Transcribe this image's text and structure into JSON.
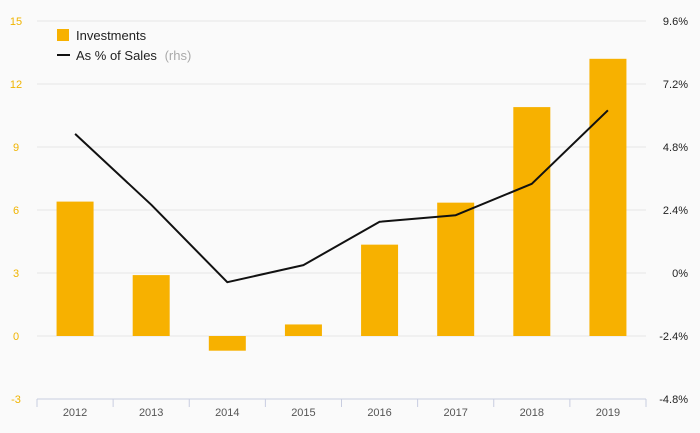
{
  "chart_data": {
    "type": "bar+line",
    "categories": [
      "2012",
      "2013",
      "2014",
      "2015",
      "2016",
      "2017",
      "2018",
      "2019"
    ],
    "series": [
      {
        "name": "Investments",
        "type": "bar",
        "axis": "left",
        "values": [
          6.4,
          2.9,
          -0.7,
          0.55,
          4.35,
          6.35,
          10.9,
          13.2
        ]
      },
      {
        "name": "As % of Sales",
        "type": "line",
        "axis": "right",
        "values": [
          5.3,
          2.6,
          -0.35,
          0.3,
          1.95,
          2.2,
          3.4,
          6.2
        ]
      }
    ],
    "left_axis": {
      "min": -3,
      "max": 15,
      "ticks": [
        "15",
        "12",
        "9",
        "6",
        "3",
        "0",
        "-3"
      ],
      "tick_values": [
        15,
        12,
        9,
        6,
        3,
        0,
        -3
      ]
    },
    "right_axis": {
      "min": -4.8,
      "max": 9.6,
      "ticks": [
        "9.6%",
        "7.2%",
        "4.8%",
        "2.4%",
        "0%",
        "-2.4%",
        "-4.8%"
      ],
      "tick_values": [
        9.6,
        7.2,
        4.8,
        2.4,
        0,
        -2.4,
        -4.8
      ]
    },
    "legend": {
      "position": "top-left",
      "items": [
        {
          "label": "Investments",
          "suffix": ""
        },
        {
          "label": "As % of Sales",
          "suffix": "(rhs)"
        }
      ]
    },
    "grid": true,
    "colors": {
      "bar": "#f7b100",
      "line": "#111111",
      "grid": "#e6e6e6",
      "axis": "#c8cde0"
    }
  }
}
